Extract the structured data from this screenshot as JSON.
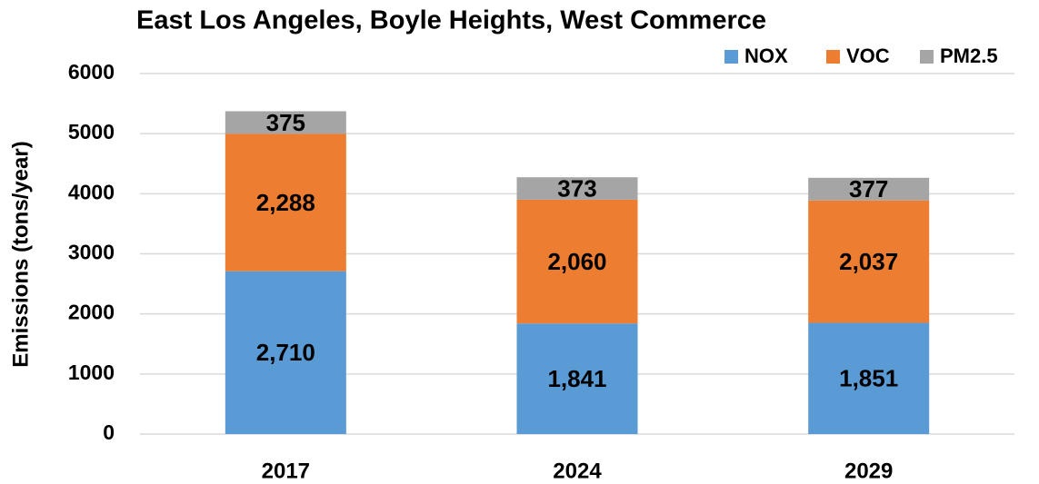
{
  "chart_data": {
    "type": "stacked_bar",
    "title": "East Los Angeles, Boyle Heights, West Commerce",
    "y_label": "Emissions (tons/year)",
    "categories": [
      "2017",
      "2024",
      "2029"
    ],
    "series": [
      {
        "name": "NOX",
        "color": "#5b9bd5",
        "values": [
          2710,
          1841,
          1851
        ],
        "value_labels": [
          "2,710",
          "1,841",
          "1,851"
        ]
      },
      {
        "name": "VOC",
        "color": "#ed7d31",
        "values": [
          2288,
          2060,
          2037
        ],
        "value_labels": [
          "2,288",
          "2,060",
          "2,037"
        ]
      },
      {
        "name": "PM2.5",
        "color": "#a5a5a5",
        "values": [
          375,
          373,
          377
        ],
        "value_labels": [
          "375",
          "373",
          "377"
        ]
      }
    ],
    "ylim": [
      0,
      6000
    ],
    "yticks": [
      0,
      1000,
      2000,
      3000,
      4000,
      5000,
      6000
    ],
    "grid": true,
    "legend": "top-right"
  }
}
